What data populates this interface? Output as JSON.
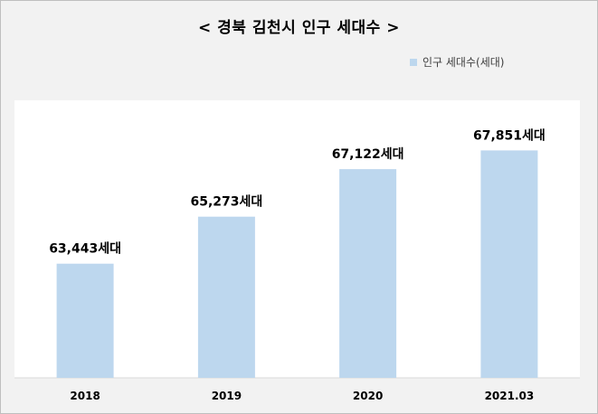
{
  "chart_data": {
    "type": "bar",
    "title": "< 경북 김천시 인구 세대수 >",
    "categories": [
      "2018",
      "2019",
      "2020",
      "2021.03"
    ],
    "series": [
      {
        "name": "인구 세대수(세대)",
        "values": [
          63443,
          65273,
          67122,
          67851
        ],
        "labels": [
          "63,443세대",
          "65,273세대",
          "67,122세대",
          "67,851세대"
        ],
        "color": "#bdd7ee"
      }
    ],
    "ylim": [
      59000,
      69800
    ],
    "grid": false,
    "legend_position": "top-right"
  }
}
